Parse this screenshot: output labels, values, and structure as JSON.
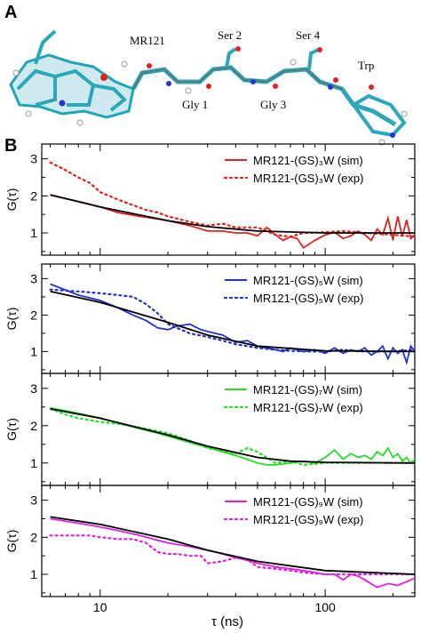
{
  "figure": {
    "panel_a_label": "A",
    "panel_b_label": "B",
    "molecule_labels": {
      "mr121": "MR121",
      "gly1": "Gly 1",
      "ser2": "Ser 2",
      "gly3": "Gly 3",
      "ser4": "Ser 4",
      "trp": "Trp"
    }
  },
  "chart_data": {
    "type": "line",
    "layout": "4 stacked panels sharing the x axis",
    "x_scale": "log",
    "xlim": [
      5.5,
      250
    ],
    "ylim": [
      0.4,
      3.4
    ],
    "xlabel": "τ (ns)",
    "ylabel": "G(τ)",
    "x_tick_labels": [
      "10",
      "100"
    ],
    "y_tick_labels": [
      "1",
      "2",
      "3"
    ],
    "legend_position": "top-right",
    "colors": {
      "fit": "#000000",
      "red": "#e0211d",
      "blue": "#2133c8",
      "green": "#27dc27",
      "magenta": "#e020e0"
    },
    "panels": [
      {
        "sim_label": "MR121-(GS)₃W (sim)",
        "exp_label": "MR121-(GS)₃W (exp)",
        "color": "#e0211d",
        "fit": {
          "x": [
            6,
            10,
            20,
            30,
            50,
            100,
            250
          ],
          "y": [
            2.03,
            1.7,
            1.33,
            1.17,
            1.05,
            1.0,
            1.0
          ]
        },
        "sim": {
          "x": [
            6,
            8,
            10,
            12,
            15,
            18,
            20,
            25,
            30,
            35,
            40,
            45,
            50,
            55,
            60,
            65,
            70,
            75,
            80,
            90,
            100,
            110,
            120,
            130,
            140,
            150,
            160,
            170,
            180,
            190,
            200,
            210,
            220,
            230,
            240,
            250
          ],
          "y": [
            2.02,
            1.85,
            1.7,
            1.55,
            1.45,
            1.38,
            1.33,
            1.2,
            1.05,
            1.05,
            1.0,
            1.0,
            0.92,
            1.15,
            0.95,
            0.8,
            0.9,
            0.85,
            0.6,
            0.8,
            0.95,
            1.02,
            0.85,
            0.92,
            1.05,
            0.95,
            0.8,
            1.1,
            0.95,
            1.4,
            0.8,
            1.45,
            0.9,
            1.35,
            0.85,
            0.95
          ]
        },
        "exp": {
          "x": [
            6,
            7,
            8,
            9,
            10,
            12,
            14,
            16,
            18,
            20,
            25,
            30,
            35,
            40,
            50,
            60,
            70,
            80,
            100,
            120,
            150,
            200,
            250
          ],
          "y": [
            2.9,
            2.7,
            2.5,
            2.35,
            2.1,
            1.9,
            1.75,
            1.62,
            1.55,
            1.45,
            1.3,
            1.2,
            1.25,
            1.15,
            1.15,
            0.95,
            0.9,
            1.0,
            1.02,
            1.05,
            1.0,
            0.95,
            0.9
          ]
        }
      },
      {
        "sim_label": "MR121-(GS)₅W (sim)",
        "exp_label": "MR121-(GS)₅W (exp)",
        "color": "#2133c8",
        "fit": {
          "x": [
            6,
            10,
            20,
            30,
            50,
            100,
            250
          ],
          "y": [
            2.65,
            2.35,
            1.8,
            1.45,
            1.15,
            1.02,
            1.0
          ]
        },
        "sim": {
          "x": [
            6,
            8,
            10,
            12,
            14,
            16,
            18,
            20,
            22,
            25,
            28,
            30,
            35,
            40,
            45,
            50,
            55,
            60,
            65,
            70,
            80,
            90,
            100,
            110,
            120,
            130,
            140,
            150,
            160,
            170,
            180,
            190,
            200,
            210,
            220,
            230,
            240,
            250
          ],
          "y": [
            2.85,
            2.55,
            2.4,
            2.2,
            2.0,
            1.85,
            1.65,
            1.6,
            1.7,
            1.75,
            1.6,
            1.55,
            1.45,
            1.25,
            1.3,
            1.15,
            1.1,
            1.05,
            1.0,
            1.1,
            1.0,
            1.05,
            0.95,
            1.1,
            0.95,
            1.05,
            1.0,
            1.1,
            0.9,
            1.0,
            1.15,
            0.8,
            1.1,
            0.95,
            1.05,
            0.7,
            1.15,
            1.0
          ]
        },
        "exp": {
          "x": [
            6,
            8,
            10,
            12,
            14,
            16,
            18,
            20,
            25,
            30,
            35,
            40,
            50,
            60,
            70,
            80,
            100,
            120,
            150,
            200,
            250
          ],
          "y": [
            2.7,
            2.65,
            2.6,
            2.55,
            2.5,
            2.3,
            2.05,
            1.75,
            1.5,
            1.4,
            1.3,
            1.2,
            1.1,
            1.05,
            1.02,
            1.0,
            1.0,
            1.05,
            1.0,
            1.0,
            1.05
          ]
        }
      },
      {
        "sim_label": "MR121-(GS)₇W (sim)",
        "exp_label": "MR121-(GS)₇W (exp)",
        "color": "#27dc27",
        "fit": {
          "x": [
            6,
            10,
            20,
            30,
            50,
            70,
            100,
            250
          ],
          "y": [
            2.45,
            2.2,
            1.75,
            1.45,
            1.15,
            1.05,
            1.02,
            1.0
          ]
        },
        "sim": {
          "x": [
            6,
            8,
            10,
            12,
            15,
            18,
            20,
            25,
            30,
            35,
            40,
            45,
            50,
            55,
            60,
            70,
            80,
            90,
            100,
            110,
            120,
            130,
            140,
            150,
            160,
            170,
            180,
            190,
            200,
            210,
            220,
            230,
            240,
            250
          ],
          "y": [
            2.48,
            2.33,
            2.2,
            2.07,
            1.92,
            1.8,
            1.72,
            1.55,
            1.42,
            1.3,
            1.2,
            1.1,
            1.0,
            0.95,
            0.95,
            1.0,
            1.05,
            1.0,
            1.15,
            1.35,
            1.1,
            1.25,
            1.15,
            1.2,
            1.1,
            1.3,
            1.2,
            1.4,
            1.15,
            1.25,
            1.05,
            1.15,
            1.0,
            1.1
          ]
        },
        "exp": {
          "x": [
            6,
            7,
            8,
            9,
            10,
            12,
            15,
            20,
            25,
            30,
            40,
            45,
            50,
            60,
            70,
            80,
            100,
            120,
            150,
            200,
            250
          ],
          "y": [
            2.45,
            2.3,
            2.2,
            2.15,
            2.1,
            2.05,
            1.95,
            1.8,
            1.6,
            1.4,
            1.25,
            1.4,
            1.3,
            1.0,
            1.05,
            0.95,
            1.0,
            1.0,
            1.0,
            1.0,
            1.0
          ]
        }
      },
      {
        "sim_label": "MR121-(GS)₉W (sim)",
        "exp_label": "MR121-(GS)₉W (exp)",
        "color": "#e020e0",
        "fit": {
          "x": [
            6,
            10,
            20,
            30,
            50,
            100,
            250
          ],
          "y": [
            2.55,
            2.35,
            1.95,
            1.65,
            1.35,
            1.1,
            1.0
          ]
        },
        "sim": {
          "x": [
            6,
            8,
            10,
            12,
            15,
            18,
            20,
            25,
            30,
            35,
            40,
            45,
            50,
            60,
            70,
            80,
            90,
            100,
            110,
            120,
            130,
            140,
            150,
            170,
            190,
            210,
            230,
            250
          ],
          "y": [
            2.5,
            2.38,
            2.28,
            2.18,
            2.05,
            1.92,
            1.85,
            1.75,
            1.65,
            1.55,
            1.45,
            1.38,
            1.3,
            1.2,
            1.15,
            1.1,
            1.05,
            1.0,
            1.0,
            0.85,
            1.0,
            0.95,
            0.85,
            0.65,
            0.75,
            0.7,
            0.8,
            0.9
          ]
        },
        "exp": {
          "x": [
            6,
            7,
            8,
            9,
            10,
            12,
            14,
            16,
            18,
            20,
            22,
            25,
            28,
            30,
            35,
            40,
            45,
            50,
            60,
            70,
            80,
            100,
            120,
            150,
            200,
            250
          ],
          "y": [
            2.05,
            2.05,
            2.05,
            2.05,
            2.0,
            1.95,
            1.95,
            1.85,
            1.6,
            1.55,
            1.55,
            1.5,
            1.5,
            1.3,
            1.35,
            1.45,
            1.4,
            1.2,
            1.15,
            1.1,
            1.05,
            1.0,
            1.0,
            1.0,
            1.0,
            1.0
          ]
        }
      }
    ]
  }
}
